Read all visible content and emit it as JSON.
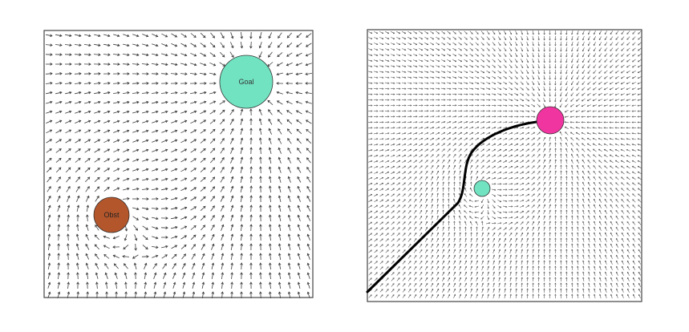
{
  "panels": [
    {
      "id": "left",
      "frame_color": "#444444",
      "arrow_color": "#3a3a3a",
      "goal": {
        "label": "Goal",
        "color": "#72e3c1"
      },
      "obstacle": {
        "label": "Obst",
        "color": "#b4562b"
      },
      "path": null
    },
    {
      "id": "right",
      "frame_color": "#444444",
      "arrow_color": "#555555",
      "goal": {
        "label": "",
        "color": "#f035a0"
      },
      "obstacle": {
        "label": "",
        "color": "#72e3c1"
      },
      "path": {
        "color": "#000000"
      }
    }
  ]
}
